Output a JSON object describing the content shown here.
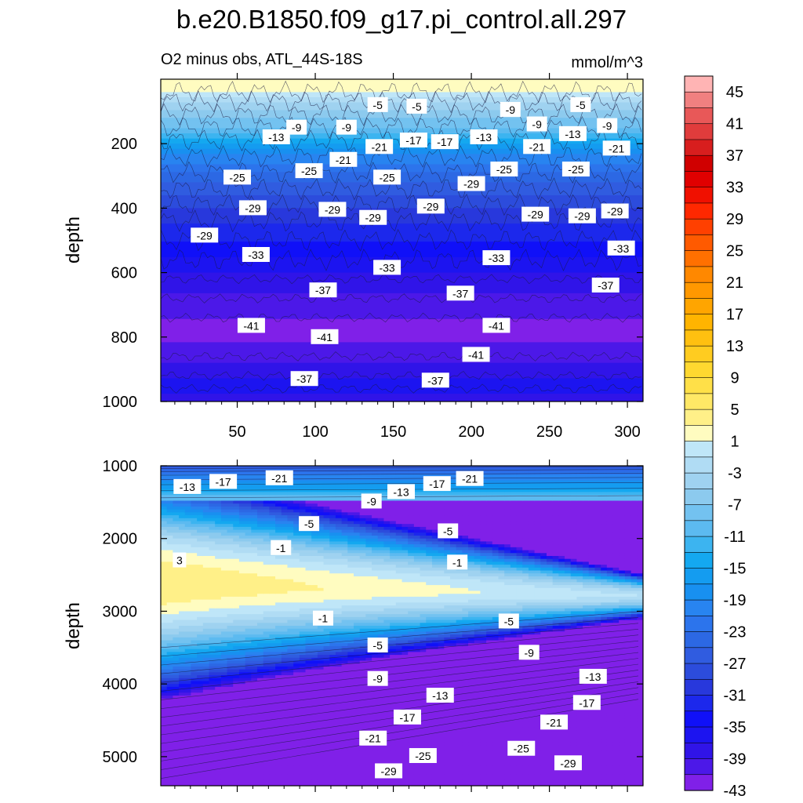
{
  "title": "b.e20.B1850.f09_g17.pi_control.all.297",
  "chart_data": {
    "type": "heatmap",
    "subtitle_left": "O2 minus obs, ATL_44S-18S",
    "subtitle_right": "mmol/m^3",
    "x_range": [
      1,
      310
    ],
    "x_ticks": [
      50,
      100,
      150,
      200,
      250,
      300
    ],
    "panels": [
      {
        "name": "upper",
        "ylabel": "depth",
        "ylim": [
          0,
          1000
        ],
        "y_ticks": [
          200,
          400,
          600,
          800,
          1000
        ],
        "profile": [
          {
            "depth": 0,
            "value": 2
          },
          {
            "depth": 40,
            "value": 1
          },
          {
            "depth": 80,
            "value": -4
          },
          {
            "depth": 150,
            "value": -9
          },
          {
            "depth": 220,
            "value": -18
          },
          {
            "depth": 300,
            "value": -24
          },
          {
            "depth": 400,
            "value": -29
          },
          {
            "depth": 500,
            "value": -33
          },
          {
            "depth": 600,
            "value": -37
          },
          {
            "depth": 700,
            "value": -40
          },
          {
            "depth": 790,
            "value": -42
          },
          {
            "depth": 880,
            "value": -39
          },
          {
            "depth": 950,
            "value": -36
          },
          {
            "depth": 1000,
            "value": -38
          }
        ],
        "contour_labels": [
          {
            "x": 75,
            "depth": 180,
            "text": "-13"
          },
          {
            "x": 140,
            "depth": 80,
            "text": "-5"
          },
          {
            "x": 165,
            "depth": 85,
            "text": "-5"
          },
          {
            "x": 225,
            "depth": 95,
            "text": "-9"
          },
          {
            "x": 270,
            "depth": 80,
            "text": "-5"
          },
          {
            "x": 242,
            "depth": 140,
            "text": "-9"
          },
          {
            "x": 88,
            "depth": 150,
            "text": "-9"
          },
          {
            "x": 120,
            "depth": 150,
            "text": "-9"
          },
          {
            "x": 287,
            "depth": 145,
            "text": "-9"
          },
          {
            "x": 265,
            "depth": 170,
            "text": "-13"
          },
          {
            "x": 208,
            "depth": 180,
            "text": "-13"
          },
          {
            "x": 141,
            "depth": 210,
            "text": "-21"
          },
          {
            "x": 163,
            "depth": 190,
            "text": "-17"
          },
          {
            "x": 183,
            "depth": 195,
            "text": "-17"
          },
          {
            "x": 118,
            "depth": 250,
            "text": "-21"
          },
          {
            "x": 242,
            "depth": 210,
            "text": "-21"
          },
          {
            "x": 293,
            "depth": 215,
            "text": "-21"
          },
          {
            "x": 50,
            "depth": 305,
            "text": "-25"
          },
          {
            "x": 96,
            "depth": 285,
            "text": "-25"
          },
          {
            "x": 146,
            "depth": 305,
            "text": "-25"
          },
          {
            "x": 221,
            "depth": 280,
            "text": "-25"
          },
          {
            "x": 267,
            "depth": 280,
            "text": "-25"
          },
          {
            "x": 60,
            "depth": 400,
            "text": "-29"
          },
          {
            "x": 111,
            "depth": 405,
            "text": "-29"
          },
          {
            "x": 137,
            "depth": 430,
            "text": "-29"
          },
          {
            "x": 174,
            "depth": 395,
            "text": "-29"
          },
          {
            "x": 200,
            "depth": 325,
            "text": "-29"
          },
          {
            "x": 241,
            "depth": 420,
            "text": "-29"
          },
          {
            "x": 271,
            "depth": 425,
            "text": "-29"
          },
          {
            "x": 292,
            "depth": 410,
            "text": "-29"
          },
          {
            "x": 29,
            "depth": 485,
            "text": "-29"
          },
          {
            "x": 62,
            "depth": 545,
            "text": "-33"
          },
          {
            "x": 146,
            "depth": 585,
            "text": "-33"
          },
          {
            "x": 216,
            "depth": 555,
            "text": "-33"
          },
          {
            "x": 296,
            "depth": 525,
            "text": "-33"
          },
          {
            "x": 105,
            "depth": 655,
            "text": "-37"
          },
          {
            "x": 193,
            "depth": 665,
            "text": "-37"
          },
          {
            "x": 286,
            "depth": 640,
            "text": "-37"
          },
          {
            "x": 59,
            "depth": 765,
            "text": "-41"
          },
          {
            "x": 106,
            "depth": 800,
            "text": "-41"
          },
          {
            "x": 216,
            "depth": 765,
            "text": "-41"
          },
          {
            "x": 203,
            "depth": 855,
            "text": "-41"
          },
          {
            "x": 93,
            "depth": 930,
            "text": "-37"
          },
          {
            "x": 177,
            "depth": 935,
            "text": "-37"
          }
        ]
      },
      {
        "name": "lower",
        "ylabel": "depth",
        "ylim": [
          1000,
          5400
        ],
        "y_ticks": [
          1000,
          2000,
          3000,
          4000,
          5000
        ],
        "contour_labels": [
          {
            "x": 18,
            "depth": 1290,
            "text": "-13"
          },
          {
            "x": 41,
            "depth": 1220,
            "text": "-17"
          },
          {
            "x": 77,
            "depth": 1170,
            "text": "-21"
          },
          {
            "x": 136,
            "depth": 1490,
            "text": "-9"
          },
          {
            "x": 155,
            "depth": 1360,
            "text": "-13"
          },
          {
            "x": 178,
            "depth": 1250,
            "text": "-17"
          },
          {
            "x": 199,
            "depth": 1180,
            "text": "-21"
          },
          {
            "x": 96,
            "depth": 1800,
            "text": "-5"
          },
          {
            "x": 185,
            "depth": 1900,
            "text": "-5"
          },
          {
            "x": 78,
            "depth": 2130,
            "text": "-1"
          },
          {
            "x": 191,
            "depth": 2330,
            "text": "-1"
          },
          {
            "x": 13,
            "depth": 2300,
            "text": "3"
          },
          {
            "x": 105,
            "depth": 3100,
            "text": "-1"
          },
          {
            "x": 224,
            "depth": 3140,
            "text": "-5"
          },
          {
            "x": 140,
            "depth": 3470,
            "text": "-5"
          },
          {
            "x": 237,
            "depth": 3570,
            "text": "-9"
          },
          {
            "x": 140,
            "depth": 3930,
            "text": "-9"
          },
          {
            "x": 180,
            "depth": 4160,
            "text": "-13"
          },
          {
            "x": 278,
            "depth": 3900,
            "text": "-13"
          },
          {
            "x": 274,
            "depth": 4260,
            "text": "-17"
          },
          {
            "x": 159,
            "depth": 4460,
            "text": "-17"
          },
          {
            "x": 253,
            "depth": 4530,
            "text": "-21"
          },
          {
            "x": 137,
            "depth": 4750,
            "text": "-21"
          },
          {
            "x": 169,
            "depth": 4990,
            "text": "-25"
          },
          {
            "x": 232,
            "depth": 4890,
            "text": "-25"
          },
          {
            "x": 262,
            "depth": 5090,
            "text": "-29"
          },
          {
            "x": 147,
            "depth": 5200,
            "text": "-29"
          }
        ]
      }
    ],
    "colorbar": {
      "levels": [
        45,
        43,
        41,
        39,
        37,
        35,
        33,
        31,
        29,
        27,
        25,
        23,
        21,
        19,
        17,
        15,
        13,
        11,
        9,
        7,
        5,
        3,
        1,
        -1,
        -3,
        -5,
        -7,
        -9,
        -11,
        -13,
        -15,
        -17,
        -19,
        -21,
        -23,
        -25,
        -27,
        -29,
        -31,
        -33,
        -35,
        -37,
        -39,
        -41,
        -43
      ],
      "tick_labels": [
        "45",
        "41",
        "37",
        "33",
        "29",
        "25",
        "21",
        "17",
        "13",
        "9",
        "5",
        "1",
        "-3",
        "-7",
        "-11",
        "-15",
        "-19",
        "-23",
        "-27",
        "-31",
        "-35",
        "-39",
        "-43"
      ],
      "colors": [
        "#ffb4b4",
        "#f08080",
        "#e85858",
        "#e03c3c",
        "#d81e1e",
        "#d00000",
        "#e00000",
        "#f01000",
        "#ff2800",
        "#ff4000",
        "#ff5a00",
        "#ff7000",
        "#ff8800",
        "#ff9800",
        "#ffa500",
        "#ffb400",
        "#ffc010",
        "#ffcc20",
        "#ffd830",
        "#ffe048",
        "#ffe866",
        "#fff088",
        "#fffcc0",
        "#bfe6f8",
        "#b0dcf4",
        "#9fd2f0",
        "#8ccaee",
        "#73c2f0",
        "#5cbaf0",
        "#3cb4f0",
        "#14a8f0",
        "#149cf0",
        "#1890f0",
        "#2884f0",
        "#2c74ec",
        "#2c68e4",
        "#305ce0",
        "#2c4cdc",
        "#2838dc",
        "#1c28ec",
        "#1010f8",
        "#1c14f0",
        "#3014e8",
        "#4c18e8",
        "#8020e8"
      ]
    }
  }
}
